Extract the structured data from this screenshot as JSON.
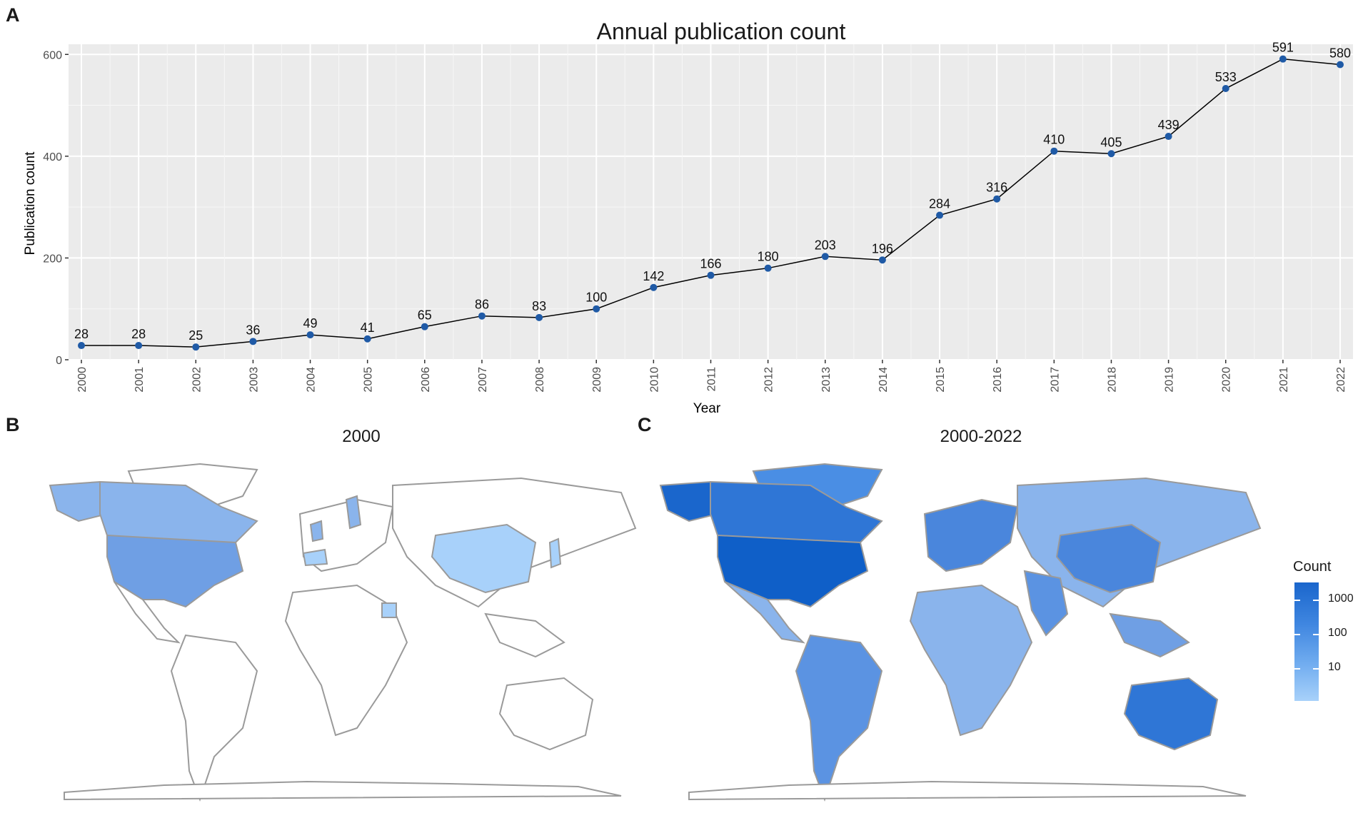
{
  "panels": {
    "a": "A",
    "b": "B",
    "c": "C"
  },
  "chart_data": [
    {
      "type": "line",
      "title": "Annual publication count",
      "xlabel": "Year",
      "ylabel": "Publication count",
      "x": [
        "2000",
        "2001",
        "2002",
        "2003",
        "2004",
        "2005",
        "2006",
        "2007",
        "2008",
        "2009",
        "2010",
        "2011",
        "2012",
        "2013",
        "2014",
        "2015",
        "2016",
        "2017",
        "2018",
        "2019",
        "2020",
        "2021",
        "2022"
      ],
      "values": [
        28,
        28,
        25,
        36,
        49,
        41,
        65,
        86,
        83,
        100,
        142,
        166,
        180,
        203,
        196,
        284,
        316,
        410,
        405,
        439,
        533,
        591,
        580
      ],
      "yticks": [
        0,
        200,
        400,
        600
      ],
      "ylim": [
        0,
        620
      ],
      "grid": true,
      "colors": {
        "point": "#1f5aa6",
        "line": "#000000",
        "panel": "#ebebeb",
        "grid": "#ffffff"
      }
    }
  ],
  "maps": {
    "b": {
      "title": "2000"
    },
    "c": {
      "title": "2000-2022"
    },
    "legend": {
      "title": "Count",
      "ticks": [
        "1000",
        "100",
        "10"
      ],
      "colors": {
        "high": "#1a66cc",
        "low": "#a8d1fa"
      }
    }
  }
}
